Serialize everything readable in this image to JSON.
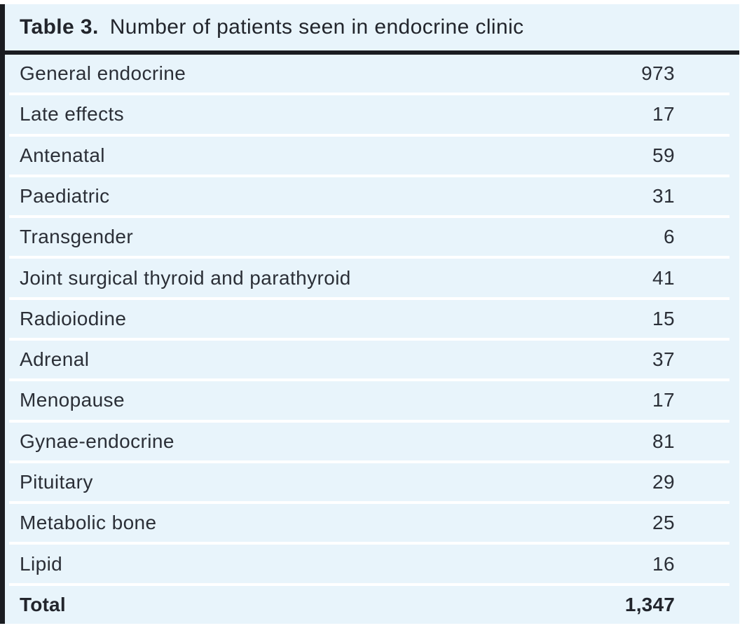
{
  "table": {
    "label": "Table 3.",
    "title": "Number of patients seen in endocrine clinic",
    "rows": [
      {
        "label": "General endocrine",
        "value": "973"
      },
      {
        "label": "Late effects",
        "value": "17"
      },
      {
        "label": "Antenatal",
        "value": "59"
      },
      {
        "label": "Paediatric",
        "value": "31"
      },
      {
        "label": "Transgender",
        "value": "6"
      },
      {
        "label": "Joint surgical thyroid and parathyroid",
        "value": "41"
      },
      {
        "label": "Radioiodine",
        "value": "15"
      },
      {
        "label": "Adrenal",
        "value": "37"
      },
      {
        "label": "Menopause",
        "value": "17"
      },
      {
        "label": "Gynae-endocrine",
        "value": "81"
      },
      {
        "label": "Pituitary",
        "value": "29"
      },
      {
        "label": "Metabolic bone",
        "value": "25"
      },
      {
        "label": "Lipid",
        "value": "16"
      }
    ],
    "total": {
      "label": "Total",
      "value": "1,347"
    }
  },
  "colors": {
    "panel_bg": "#e8f4fb",
    "accent_dark": "#1a1c21",
    "body_text": "#2b2f37",
    "separator": "#ffffff",
    "page_bg": "#ffffff"
  }
}
